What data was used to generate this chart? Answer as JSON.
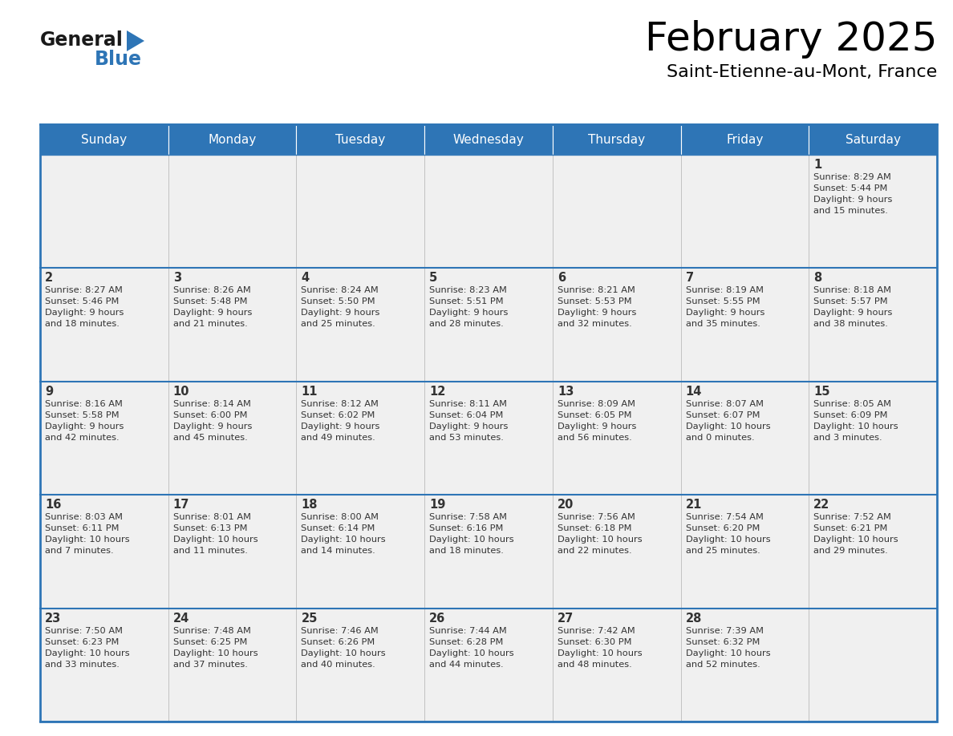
{
  "title": "February 2025",
  "subtitle": "Saint-Etienne-au-Mont, France",
  "header_bg_color": "#2e75b6",
  "header_text_color": "#ffffff",
  "cell_bg_color": "#f0f0f0",
  "border_color": "#2e75b6",
  "text_color": "#333333",
  "day_names": [
    "Sunday",
    "Monday",
    "Tuesday",
    "Wednesday",
    "Thursday",
    "Friday",
    "Saturday"
  ],
  "days": [
    {
      "day": 1,
      "row": 0,
      "col": 6,
      "sunrise": "8:29 AM",
      "sunset": "5:44 PM",
      "daylight_h": "9 hours",
      "daylight_m": "and 15 minutes."
    },
    {
      "day": 2,
      "row": 1,
      "col": 0,
      "sunrise": "8:27 AM",
      "sunset": "5:46 PM",
      "daylight_h": "9 hours",
      "daylight_m": "and 18 minutes."
    },
    {
      "day": 3,
      "row": 1,
      "col": 1,
      "sunrise": "8:26 AM",
      "sunset": "5:48 PM",
      "daylight_h": "9 hours",
      "daylight_m": "and 21 minutes."
    },
    {
      "day": 4,
      "row": 1,
      "col": 2,
      "sunrise": "8:24 AM",
      "sunset": "5:50 PM",
      "daylight_h": "9 hours",
      "daylight_m": "and 25 minutes."
    },
    {
      "day": 5,
      "row": 1,
      "col": 3,
      "sunrise": "8:23 AM",
      "sunset": "5:51 PM",
      "daylight_h": "9 hours",
      "daylight_m": "and 28 minutes."
    },
    {
      "day": 6,
      "row": 1,
      "col": 4,
      "sunrise": "8:21 AM",
      "sunset": "5:53 PM",
      "daylight_h": "9 hours",
      "daylight_m": "and 32 minutes."
    },
    {
      "day": 7,
      "row": 1,
      "col": 5,
      "sunrise": "8:19 AM",
      "sunset": "5:55 PM",
      "daylight_h": "9 hours",
      "daylight_m": "and 35 minutes."
    },
    {
      "day": 8,
      "row": 1,
      "col": 6,
      "sunrise": "8:18 AM",
      "sunset": "5:57 PM",
      "daylight_h": "9 hours",
      "daylight_m": "and 38 minutes."
    },
    {
      "day": 9,
      "row": 2,
      "col": 0,
      "sunrise": "8:16 AM",
      "sunset": "5:58 PM",
      "daylight_h": "9 hours",
      "daylight_m": "and 42 minutes."
    },
    {
      "day": 10,
      "row": 2,
      "col": 1,
      "sunrise": "8:14 AM",
      "sunset": "6:00 PM",
      "daylight_h": "9 hours",
      "daylight_m": "and 45 minutes."
    },
    {
      "day": 11,
      "row": 2,
      "col": 2,
      "sunrise": "8:12 AM",
      "sunset": "6:02 PM",
      "daylight_h": "9 hours",
      "daylight_m": "and 49 minutes."
    },
    {
      "day": 12,
      "row": 2,
      "col": 3,
      "sunrise": "8:11 AM",
      "sunset": "6:04 PM",
      "daylight_h": "9 hours",
      "daylight_m": "and 53 minutes."
    },
    {
      "day": 13,
      "row": 2,
      "col": 4,
      "sunrise": "8:09 AM",
      "sunset": "6:05 PM",
      "daylight_h": "9 hours",
      "daylight_m": "and 56 minutes."
    },
    {
      "day": 14,
      "row": 2,
      "col": 5,
      "sunrise": "8:07 AM",
      "sunset": "6:07 PM",
      "daylight_h": "10 hours",
      "daylight_m": "and 0 minutes."
    },
    {
      "day": 15,
      "row": 2,
      "col": 6,
      "sunrise": "8:05 AM",
      "sunset": "6:09 PM",
      "daylight_h": "10 hours",
      "daylight_m": "and 3 minutes."
    },
    {
      "day": 16,
      "row": 3,
      "col": 0,
      "sunrise": "8:03 AM",
      "sunset": "6:11 PM",
      "daylight_h": "10 hours",
      "daylight_m": "and 7 minutes."
    },
    {
      "day": 17,
      "row": 3,
      "col": 1,
      "sunrise": "8:01 AM",
      "sunset": "6:13 PM",
      "daylight_h": "10 hours",
      "daylight_m": "and 11 minutes."
    },
    {
      "day": 18,
      "row": 3,
      "col": 2,
      "sunrise": "8:00 AM",
      "sunset": "6:14 PM",
      "daylight_h": "10 hours",
      "daylight_m": "and 14 minutes."
    },
    {
      "day": 19,
      "row": 3,
      "col": 3,
      "sunrise": "7:58 AM",
      "sunset": "6:16 PM",
      "daylight_h": "10 hours",
      "daylight_m": "and 18 minutes."
    },
    {
      "day": 20,
      "row": 3,
      "col": 4,
      "sunrise": "7:56 AM",
      "sunset": "6:18 PM",
      "daylight_h": "10 hours",
      "daylight_m": "and 22 minutes."
    },
    {
      "day": 21,
      "row": 3,
      "col": 5,
      "sunrise": "7:54 AM",
      "sunset": "6:20 PM",
      "daylight_h": "10 hours",
      "daylight_m": "and 25 minutes."
    },
    {
      "day": 22,
      "row": 3,
      "col": 6,
      "sunrise": "7:52 AM",
      "sunset": "6:21 PM",
      "daylight_h": "10 hours",
      "daylight_m": "and 29 minutes."
    },
    {
      "day": 23,
      "row": 4,
      "col": 0,
      "sunrise": "7:50 AM",
      "sunset": "6:23 PM",
      "daylight_h": "10 hours",
      "daylight_m": "and 33 minutes."
    },
    {
      "day": 24,
      "row": 4,
      "col": 1,
      "sunrise": "7:48 AM",
      "sunset": "6:25 PM",
      "daylight_h": "10 hours",
      "daylight_m": "and 37 minutes."
    },
    {
      "day": 25,
      "row": 4,
      "col": 2,
      "sunrise": "7:46 AM",
      "sunset": "6:26 PM",
      "daylight_h": "10 hours",
      "daylight_m": "and 40 minutes."
    },
    {
      "day": 26,
      "row": 4,
      "col": 3,
      "sunrise": "7:44 AM",
      "sunset": "6:28 PM",
      "daylight_h": "10 hours",
      "daylight_m": "and 44 minutes."
    },
    {
      "day": 27,
      "row": 4,
      "col": 4,
      "sunrise": "7:42 AM",
      "sunset": "6:30 PM",
      "daylight_h": "10 hours",
      "daylight_m": "and 48 minutes."
    },
    {
      "day": 28,
      "row": 4,
      "col": 5,
      "sunrise": "7:39 AM",
      "sunset": "6:32 PM",
      "daylight_h": "10 hours",
      "daylight_m": "and 52 minutes."
    }
  ],
  "logo_general_color": "#1a1a1a",
  "logo_blue_color": "#2e75b6",
  "logo_triangle_color": "#2e75b6",
  "fig_width": 11.88,
  "fig_height": 9.18,
  "dpi": 100
}
